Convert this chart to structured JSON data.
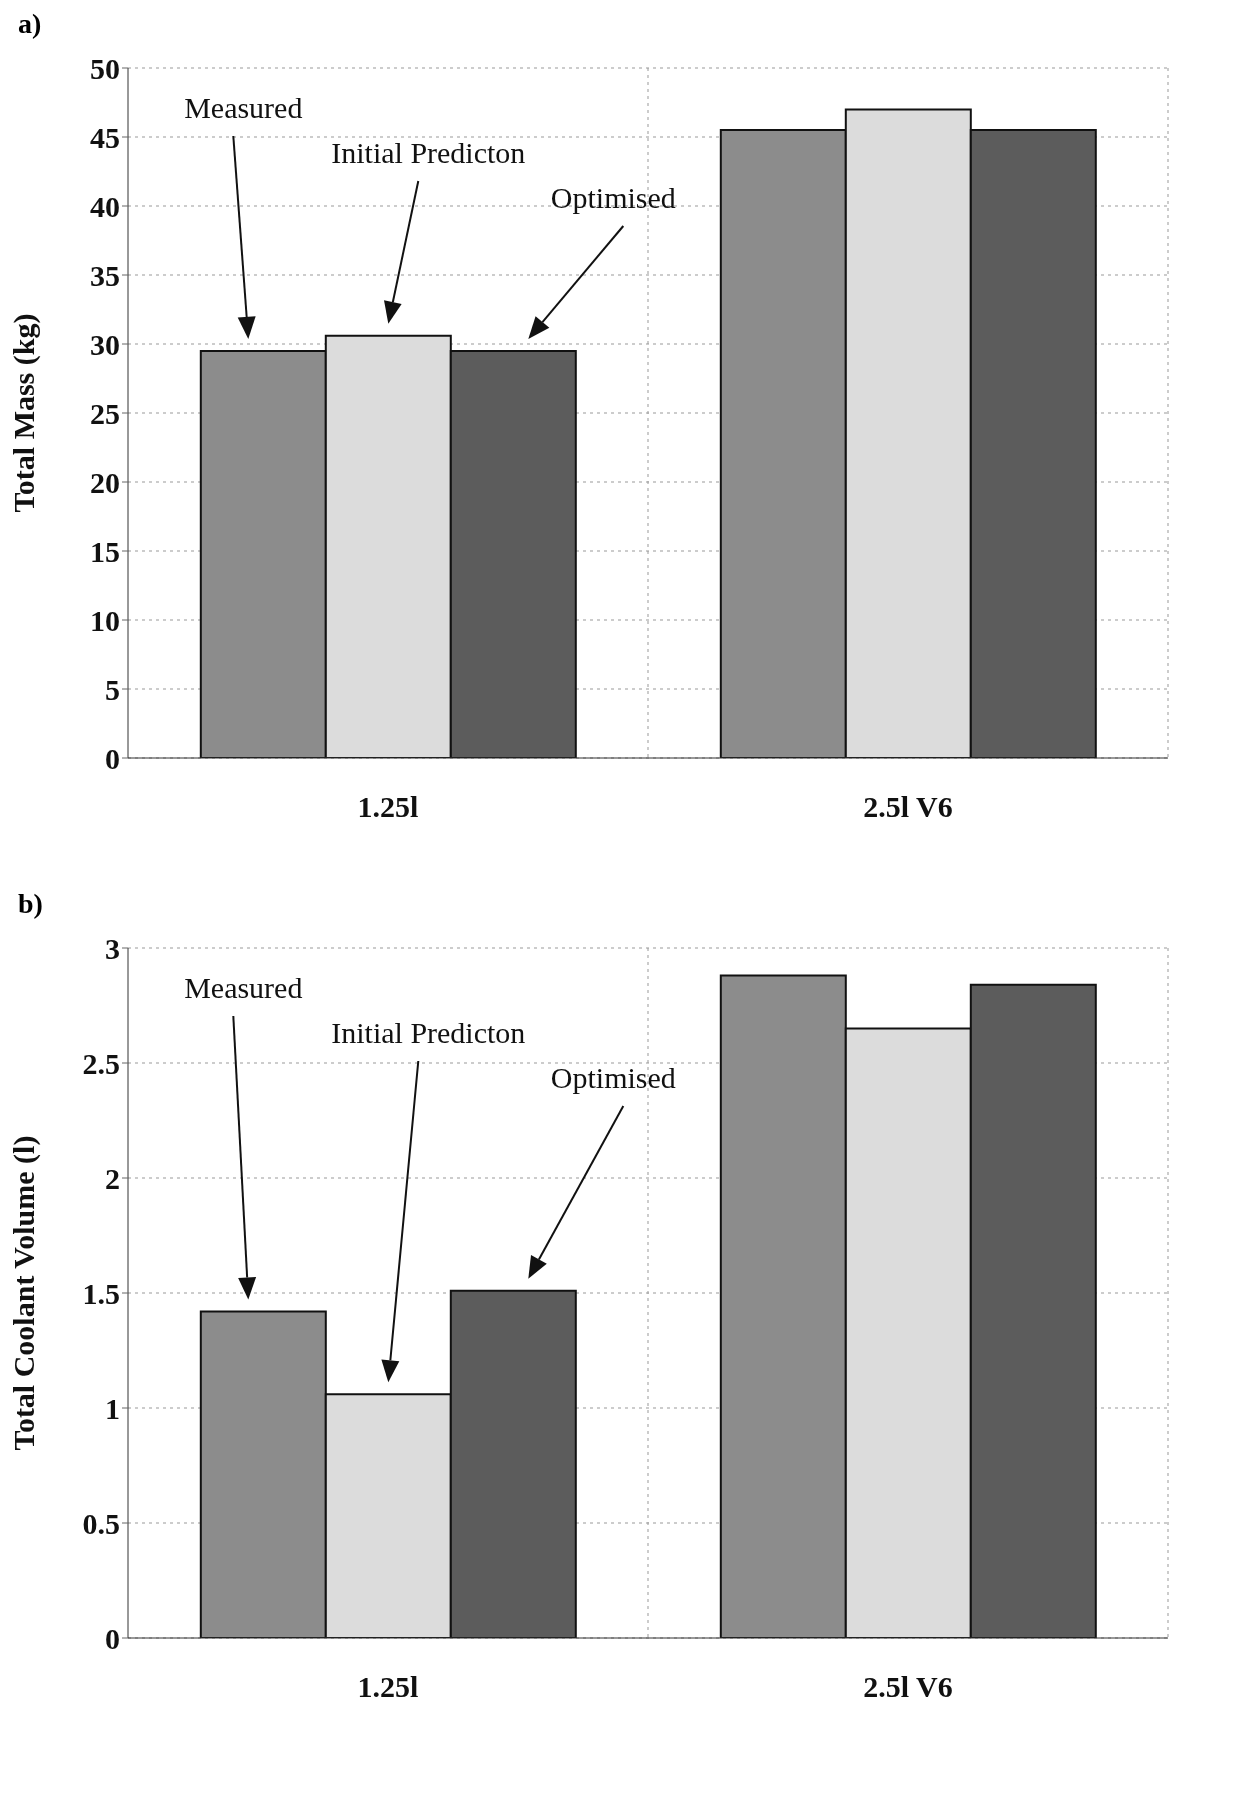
{
  "chart_data": [
    {
      "type": "bar",
      "title": "a)",
      "ylabel": "Total Mass (kg)",
      "categories": [
        "1.25l",
        "2.5l V6"
      ],
      "series": [
        {
          "color": "#8c8c8c",
          "values": [
            29.5,
            45.5
          ]
        },
        {
          "color": "#dcdcdc",
          "values": [
            30.6,
            47.0
          ]
        },
        {
          "color": "#5c5c5c",
          "values": [
            29.5,
            45.5
          ]
        }
      ],
      "annotations": [
        "Measured",
        "Initial Predicton",
        "Optimised"
      ],
      "ylim": [
        0,
        50
      ],
      "yticks": [
        0,
        5,
        10,
        15,
        20,
        25,
        30,
        35,
        40,
        45,
        50
      ],
      "grid": true,
      "legend": false
    },
    {
      "type": "bar",
      "title": "b)",
      "ylabel": "Total Coolant Volume (l)",
      "categories": [
        "1.25l",
        "2.5l V6"
      ],
      "series": [
        {
          "color": "#8c8c8c",
          "values": [
            1.42,
            2.88
          ]
        },
        {
          "color": "#dcdcdc",
          "values": [
            1.06,
            2.65
          ]
        },
        {
          "color": "#5c5c5c",
          "values": [
            1.51,
            2.84
          ]
        }
      ],
      "annotations": [
        "Measured",
        "Initial Predicton",
        "Optimised"
      ],
      "ylim": [
        0,
        3
      ],
      "yticks": [
        0,
        0.5,
        1,
        1.5,
        2,
        2.5,
        3
      ],
      "grid": true,
      "legend": false
    }
  ]
}
